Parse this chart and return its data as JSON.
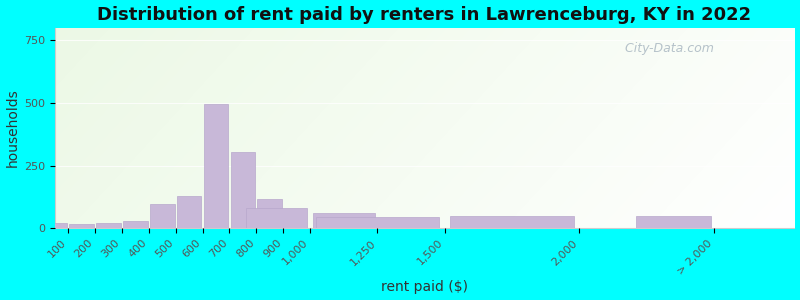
{
  "title": "Distribution of rent paid by renters in Lawrenceburg, KY in 2022",
  "xlabel": "rent paid ($)",
  "ylabel": "households",
  "bar_color": "#c8b8d8",
  "bar_edge_color": "#b8a8cc",
  "background_outer": "#00ffff",
  "ylim": [
    0,
    800
  ],
  "yticks": [
    0,
    250,
    500,
    750
  ],
  "watermark": "  City-Data.com",
  "title_fontsize": 13,
  "axis_label_fontsize": 10,
  "tick_fontsize": 8,
  "positions": [
    100,
    200,
    300,
    400,
    500,
    600,
    700,
    800,
    900,
    1000,
    1250,
    1500,
    2000,
    2500
  ],
  "widths": [
    100,
    100,
    100,
    100,
    100,
    100,
    100,
    100,
    100,
    250,
    250,
    500,
    500,
    300
  ],
  "values": [
    22,
    15,
    22,
    30,
    95,
    130,
    495,
    305,
    115,
    80,
    60,
    45,
    50,
    48
  ],
  "tick_positions": [
    100,
    200,
    300,
    400,
    500,
    600,
    700,
    800,
    900,
    1000,
    1250,
    1500,
    2000,
    2500
  ],
  "tick_labels": [
    "100",
    "200",
    "300",
    "400",
    "500",
    "600",
    "700",
    "800",
    "900",
    "1,000",
    "1,250",
    "1,500",
    "2,000",
    "> 2,000"
  ],
  "xlim": [
    50,
    2800
  ]
}
